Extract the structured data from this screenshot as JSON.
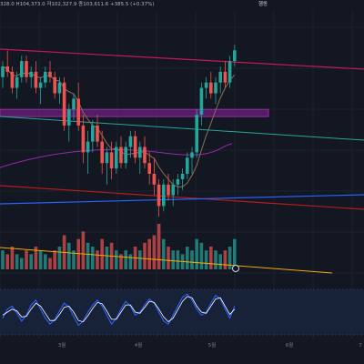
{
  "header": {
    "title_tag": "행동",
    "ohlc_text": "328.0  H104,373.0  저102,327.9  종103,611.6  +385.5 (+0.37%)"
  },
  "chart_data": {
    "type": "candlestick",
    "panels": [
      "price",
      "volume",
      "oscillator"
    ],
    "x_ticks": [
      "3월",
      "4월",
      "5월",
      "6월",
      "7"
    ],
    "grid": true,
    "colors": {
      "background": "#131722",
      "up": "#26a69a",
      "down": "#ef5350",
      "ma": "#8e6e4f",
      "trend_pink": "#c2185b",
      "trend_red": "#b71c1c",
      "trend_teal": "#26a69a",
      "trend_blue": "#2962ff",
      "purple_line": "#9c27b0",
      "zone": "#9c27b0",
      "volume_trend": "#f7a600",
      "osc_k": "#2962ff",
      "osc_d": "#ffffff"
    },
    "candles": [
      {
        "o": 98,
        "h": 101,
        "l": 96,
        "c": 100
      },
      {
        "o": 100,
        "h": 103,
        "l": 98,
        "c": 99
      },
      {
        "o": 99,
        "h": 100,
        "l": 95,
        "c": 96
      },
      {
        "o": 96,
        "h": 99,
        "l": 94,
        "c": 98
      },
      {
        "o": 98,
        "h": 102,
        "l": 97,
        "c": 101
      },
      {
        "o": 101,
        "h": 102,
        "l": 97,
        "c": 98
      },
      {
        "o": 98,
        "h": 100,
        "l": 96,
        "c": 99
      },
      {
        "o": 99,
        "h": 101,
        "l": 95,
        "c": 96
      },
      {
        "o": 96,
        "h": 98,
        "l": 93,
        "c": 97
      },
      {
        "o": 97,
        "h": 100,
        "l": 96,
        "c": 99
      },
      {
        "o": 99,
        "h": 101,
        "l": 97,
        "c": 98
      },
      {
        "o": 98,
        "h": 99,
        "l": 94,
        "c": 95
      },
      {
        "o": 95,
        "h": 98,
        "l": 93,
        "c": 97
      },
      {
        "o": 97,
        "h": 98,
        "l": 88,
        "c": 89
      },
      {
        "o": 89,
        "h": 93,
        "l": 86,
        "c": 92
      },
      {
        "o": 92,
        "h": 95,
        "l": 90,
        "c": 94
      },
      {
        "o": 94,
        "h": 97,
        "l": 88,
        "c": 89
      },
      {
        "o": 89,
        "h": 91,
        "l": 82,
        "c": 84
      },
      {
        "o": 84,
        "h": 88,
        "l": 80,
        "c": 86
      },
      {
        "o": 86,
        "h": 90,
        "l": 84,
        "c": 89
      },
      {
        "o": 89,
        "h": 91,
        "l": 85,
        "c": 86
      },
      {
        "o": 86,
        "h": 88,
        "l": 80,
        "c": 82
      },
      {
        "o": 82,
        "h": 85,
        "l": 78,
        "c": 84
      },
      {
        "o": 84,
        "h": 86,
        "l": 79,
        "c": 81
      },
      {
        "o": 81,
        "h": 86,
        "l": 80,
        "c": 85
      },
      {
        "o": 85,
        "h": 87,
        "l": 81,
        "c": 82
      },
      {
        "o": 82,
        "h": 86,
        "l": 81,
        "c": 85
      },
      {
        "o": 85,
        "h": 88,
        "l": 83,
        "c": 87
      },
      {
        "o": 87,
        "h": 88,
        "l": 82,
        "c": 83
      },
      {
        "o": 83,
        "h": 86,
        "l": 80,
        "c": 85
      },
      {
        "o": 85,
        "h": 87,
        "l": 81,
        "c": 82
      },
      {
        "o": 82,
        "h": 84,
        "l": 78,
        "c": 80
      },
      {
        "o": 80,
        "h": 83,
        "l": 76,
        "c": 78
      },
      {
        "o": 78,
        "h": 79,
        "l": 72,
        "c": 74
      },
      {
        "o": 74,
        "h": 79,
        "l": 73,
        "c": 78
      },
      {
        "o": 78,
        "h": 80,
        "l": 75,
        "c": 76
      },
      {
        "o": 76,
        "h": 79,
        "l": 74,
        "c": 78
      },
      {
        "o": 78,
        "h": 80,
        "l": 76,
        "c": 79
      },
      {
        "o": 79,
        "h": 81,
        "l": 77,
        "c": 80
      },
      {
        "o": 80,
        "h": 84,
        "l": 79,
        "c": 83
      },
      {
        "o": 83,
        "h": 85,
        "l": 80,
        "c": 84
      },
      {
        "o": 84,
        "h": 92,
        "l": 83,
        "c": 91
      },
      {
        "o": 91,
        "h": 97,
        "l": 89,
        "c": 96
      },
      {
        "o": 96,
        "h": 98,
        "l": 94,
        "c": 97
      },
      {
        "o": 97,
        "h": 99,
        "l": 94,
        "c": 95
      },
      {
        "o": 95,
        "h": 98,
        "l": 93,
        "c": 97
      },
      {
        "o": 97,
        "h": 100,
        "l": 95,
        "c": 99
      },
      {
        "o": 99,
        "h": 101,
        "l": 96,
        "c": 97
      },
      {
        "o": 97,
        "h": 102,
        "l": 96,
        "c": 101
      },
      {
        "o": 101,
        "h": 104,
        "l": 100,
        "c": 103
      }
    ],
    "volume": [
      5,
      4,
      6,
      4,
      3,
      5,
      4,
      6,
      5,
      4,
      3,
      5,
      6,
      9,
      7,
      5,
      8,
      10,
      7,
      6,
      5,
      8,
      6,
      7,
      5,
      4,
      5,
      4,
      6,
      5,
      7,
      8,
      9,
      12,
      8,
      6,
      5,
      5,
      4,
      6,
      5,
      8,
      7,
      5,
      6,
      5,
      4,
      5,
      6,
      8
    ],
    "oscillator": {
      "k": [
        40,
        55,
        60,
        48,
        35,
        45,
        62,
        70,
        55,
        40,
        30,
        38,
        52,
        65,
        58,
        42,
        28,
        35,
        50,
        62,
        70,
        60,
        45,
        30,
        40,
        55,
        68,
        60,
        45,
        50,
        62,
        72,
        65,
        50,
        35,
        30,
        45,
        60,
        75,
        80,
        70,
        55,
        45,
        50,
        65,
        78,
        72,
        55,
        40,
        60
      ],
      "d": [
        45,
        50,
        55,
        52,
        42,
        43,
        55,
        65,
        60,
        48,
        36,
        36,
        46,
        58,
        60,
        50,
        36,
        34,
        44,
        56,
        66,
        64,
        52,
        38,
        38,
        50,
        62,
        62,
        50,
        48,
        58,
        68,
        66,
        55,
        42,
        34,
        40,
        54,
        68,
        76,
        74,
        60,
        50,
        48,
        60,
        72,
        74,
        60,
        46,
        55
      ]
    }
  }
}
